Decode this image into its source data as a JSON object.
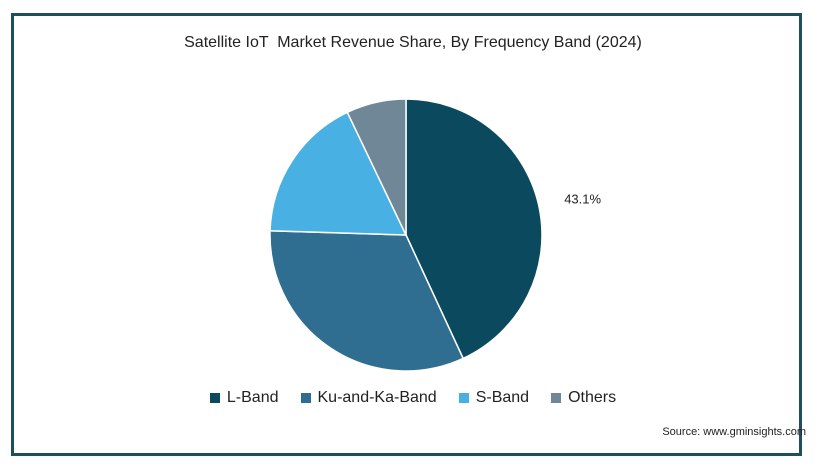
{
  "chart_data": {
    "type": "pie",
    "title": "Satellite IoT  Market Revenue Share, By Frequency Band (2024)",
    "slices": [
      {
        "name": "L-Band",
        "value": 43.1,
        "color": "#0b4a5e",
        "label": "43.1%"
      },
      {
        "name": "Ku-and-Ka-Band",
        "value": 32.4,
        "color": "#2f6e90",
        "label": ""
      },
      {
        "name": "S-Band",
        "value": 17.4,
        "color": "#48b0e2",
        "label": ""
      },
      {
        "name": "Others",
        "value": 7.1,
        "color": "#6f8796",
        "label": ""
      }
    ],
    "legend_position": "bottom"
  },
  "source": "Source: www.gminsights.com"
}
